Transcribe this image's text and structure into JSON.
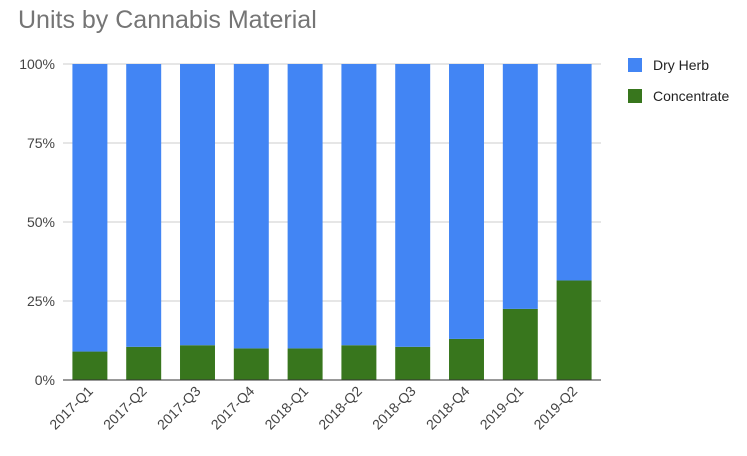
{
  "chart_data": {
    "type": "bar",
    "stacked": true,
    "normalized_percent": true,
    "title": "Units by Cannabis Material",
    "xlabel": "",
    "ylabel": "",
    "ylim": [
      0,
      100
    ],
    "yticks": [
      "0%",
      "25%",
      "50%",
      "75%",
      "100%"
    ],
    "grid": true,
    "legend_position": "right",
    "categories": [
      "2017-Q1",
      "2017-Q2",
      "2017-Q3",
      "2017-Q4",
      "2018-Q1",
      "2018-Q2",
      "2018-Q3",
      "2018-Q4",
      "2019-Q1",
      "2019-Q2"
    ],
    "series": [
      {
        "name": "Concentrate",
        "color": "#38761d",
        "values": [
          9,
          10.5,
          11,
          10,
          10,
          11,
          10.5,
          13,
          22.5,
          31.5
        ]
      },
      {
        "name": "Dry Herb",
        "color": "#4285f4",
        "values": [
          91,
          89.5,
          89,
          90,
          90,
          89,
          89.5,
          87,
          77.5,
          68.5
        ]
      }
    ],
    "legend": [
      {
        "name": "Dry Herb",
        "color": "#4285f4"
      },
      {
        "name": "Concentrate",
        "color": "#38761d"
      }
    ]
  }
}
